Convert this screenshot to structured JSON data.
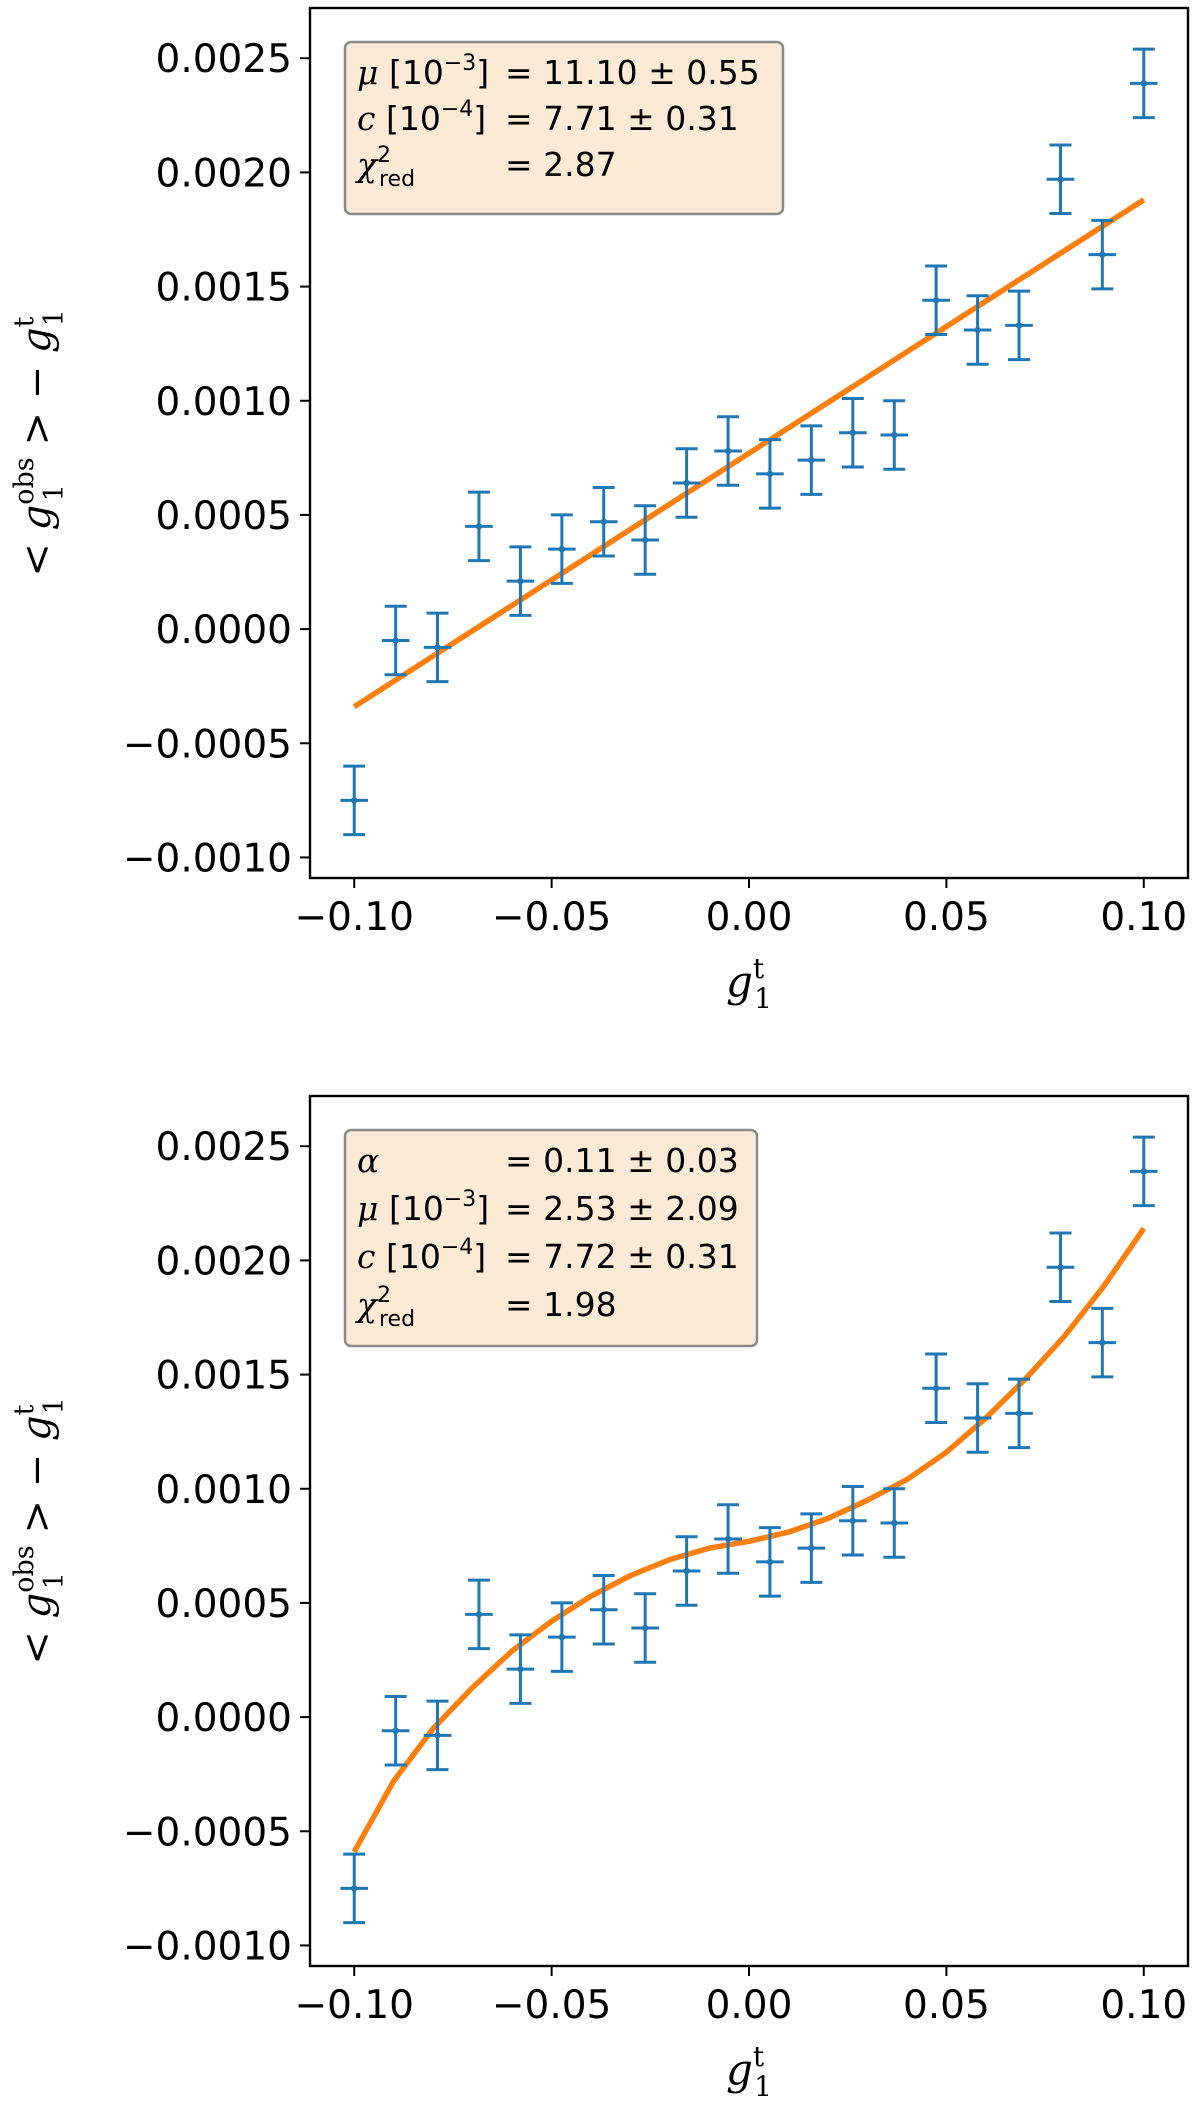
{
  "colors": {
    "points": "#1f77b4",
    "fit": "#ff7f0e",
    "legend_bg": "#fbead5",
    "legend_border": "#8a8a8a"
  },
  "chart_data": [
    {
      "type": "scatter",
      "name": "top-panel",
      "xlabel": {
        "base": "g",
        "sub": "1",
        "sup": "t"
      },
      "ylabel": {
        "prefix": "< ",
        "base": "g",
        "sub": "1",
        "sup": "obs",
        "mid": " > − ",
        "base2": "g",
        "sub2": "1",
        "sup2": "t"
      },
      "xlim": [
        -0.1112,
        0.1112
      ],
      "ylim": [
        -0.00109,
        0.00272
      ],
      "xticks": [
        -0.1,
        -0.05,
        0.0,
        0.05,
        0.1
      ],
      "xtick_labels": [
        "−0.10",
        "−0.05",
        "0.00",
        "0.05",
        "0.10"
      ],
      "yticks": [
        -0.001,
        -0.0005,
        0.0,
        0.0005,
        0.001,
        0.0015,
        0.002,
        0.0025
      ],
      "ytick_labels": [
        "−0.0010",
        "−0.0005",
        "0.0000",
        "0.0005",
        "0.0010",
        "0.0015",
        "0.0020",
        "0.0025"
      ],
      "points": {
        "x": [
          -0.1,
          -0.0895,
          -0.0789,
          -0.0684,
          -0.0579,
          -0.0474,
          -0.0368,
          -0.0263,
          -0.0158,
          -0.0053,
          0.0053,
          0.0158,
          0.0263,
          0.0368,
          0.0474,
          0.0579,
          0.0684,
          0.0789,
          0.0895,
          0.1
        ],
        "y": [
          -0.00075,
          -5e-05,
          -8e-05,
          0.00045,
          0.00021,
          0.00035,
          0.00047,
          0.00039,
          0.00064,
          0.00078,
          0.00068,
          0.00074,
          0.00086,
          0.00085,
          0.00144,
          0.00131,
          0.00133,
          0.00197,
          0.00164,
          0.00239
        ],
        "yerr": 0.00015,
        "xerr": 0.0035
      },
      "fit": {
        "x": [
          -0.1,
          0.1
        ],
        "y": [
          -0.00034,
          0.00188
        ]
      },
      "legend": [
        {
          "sym": "μ",
          "unit": " [10",
          "exp": "−3",
          "close": "]",
          "eq": "= 11.10 ± 0.55"
        },
        {
          "sym": "c",
          "unit": " [10",
          "exp": "−4",
          "close": "]",
          "eq": "= 7.71 ± 0.31"
        },
        {
          "sym": "χ",
          "sup": "2",
          "sub": "red",
          "eq": "= 2.87"
        }
      ]
    },
    {
      "type": "scatter",
      "name": "bottom-panel",
      "xlabel": {
        "base": "g",
        "sub": "1",
        "sup": "t"
      },
      "ylabel": {
        "prefix": "< ",
        "base": "g",
        "sub": "1",
        "sup": "obs",
        "mid": " > − ",
        "base2": "g",
        "sub2": "1",
        "sup2": "t"
      },
      "xlim": [
        -0.1112,
        0.1112
      ],
      "ylim": [
        -0.00109,
        0.00272
      ],
      "xticks": [
        -0.1,
        -0.05,
        0.0,
        0.05,
        0.1
      ],
      "xtick_labels": [
        "−0.10",
        "−0.05",
        "0.00",
        "0.05",
        "0.10"
      ],
      "yticks": [
        -0.001,
        -0.0005,
        0.0,
        0.0005,
        0.001,
        0.0015,
        0.002,
        0.0025
      ],
      "ytick_labels": [
        "−0.0010",
        "−0.0005",
        "0.0000",
        "0.0005",
        "0.0010",
        "0.0015",
        "0.0020",
        "0.0025"
      ],
      "points": {
        "x": [
          -0.1,
          -0.0895,
          -0.0789,
          -0.0684,
          -0.0579,
          -0.0474,
          -0.0368,
          -0.0263,
          -0.0158,
          -0.0053,
          0.0053,
          0.0158,
          0.0263,
          0.0368,
          0.0474,
          0.0579,
          0.0684,
          0.0789,
          0.0895,
          0.1
        ],
        "y": [
          -0.00075,
          -6e-05,
          -8e-05,
          0.00045,
          0.00021,
          0.00035,
          0.00047,
          0.00039,
          0.00064,
          0.00078,
          0.00068,
          0.00074,
          0.00086,
          0.00085,
          0.00144,
          0.00131,
          0.00133,
          0.00197,
          0.00164,
          0.00239
        ],
        "yerr": 0.00015,
        "xerr": 0.0035
      },
      "fit": {
        "x": [
          -0.1,
          -0.09,
          -0.08,
          -0.07,
          -0.06,
          -0.05,
          -0.04,
          -0.03,
          -0.02,
          -0.01,
          0.0,
          0.01,
          0.02,
          0.03,
          0.04,
          0.05,
          0.06,
          0.07,
          0.08,
          0.09,
          0.1
        ],
        "y": [
          -0.00059,
          -0.00028,
          -5e-05,
          0.00013,
          0.00029,
          0.00042,
          0.00053,
          0.00062,
          0.00069,
          0.00074,
          0.00077,
          0.00081,
          0.00087,
          0.00095,
          0.00104,
          0.00116,
          0.00131,
          0.00148,
          0.00167,
          0.00189,
          0.00214
        ]
      },
      "legend": [
        {
          "sym": "α",
          "eq": "= 0.11 ± 0.03"
        },
        {
          "sym": "μ",
          "unit": " [10",
          "exp": "−3",
          "close": "]",
          "eq": "= 2.53 ± 2.09"
        },
        {
          "sym": "c",
          "unit": " [10",
          "exp": "−4",
          "close": "]",
          "eq": "= 7.72 ± 0.31"
        },
        {
          "sym": "χ",
          "sup": "2",
          "sub": "red",
          "eq": "= 1.98"
        }
      ]
    }
  ]
}
